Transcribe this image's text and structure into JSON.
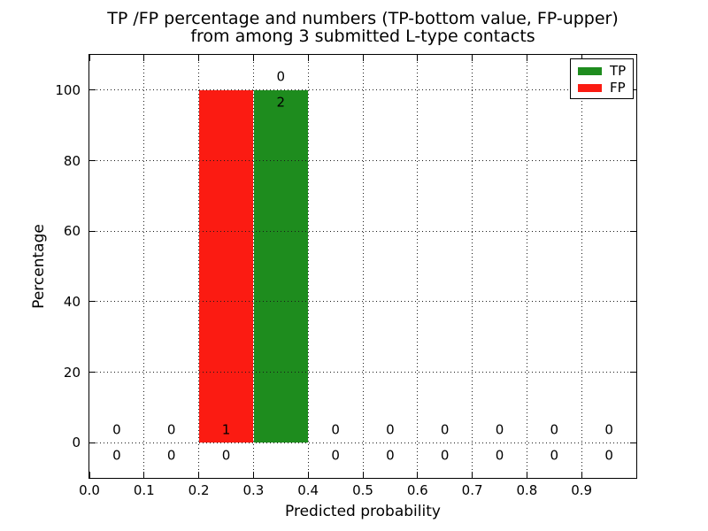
{
  "figure": {
    "title_line1": "TP /FP percentage and numbers (TP-bottom value, FP-upper)",
    "title_line2": "from among 3 submitted L-type contacts"
  },
  "chart_data": {
    "type": "bar",
    "title": "TP /FP percentage and numbers (TP-bottom value, FP-upper)\nfrom among 3 submitted L-type contacts",
    "xlabel": "Predicted probability",
    "ylabel": "Percentage",
    "xlim": [
      0.0,
      1.0
    ],
    "ylim": [
      -10,
      110
    ],
    "xtick_labels": [
      "0.0",
      "0.1",
      "0.2",
      "0.3",
      "0.4",
      "0.5",
      "0.6",
      "0.7",
      "0.8",
      "0.9"
    ],
    "ytick_values": [
      0,
      20,
      40,
      60,
      80,
      100
    ],
    "grid": "dotted both axes, drawn over bars",
    "legend_position": "upper right",
    "bin_width": 0.1,
    "bin_centers": [
      0.05,
      0.15,
      0.25,
      0.35,
      0.45,
      0.55,
      0.65,
      0.75,
      0.85,
      0.95
    ],
    "series": [
      {
        "name": "FP",
        "color": "#fb1b12",
        "percentages": [
          0,
          0,
          100,
          0,
          0,
          0,
          0,
          0,
          0,
          0
        ],
        "counts": [
          0,
          0,
          1,
          0,
          0,
          0,
          0,
          0,
          0,
          0
        ],
        "count_label_row": "upper"
      },
      {
        "name": "TP",
        "color": "#1e8c1e",
        "percentages": [
          0,
          0,
          0,
          100,
          0,
          0,
          0,
          0,
          0,
          0
        ],
        "counts": [
          0,
          0,
          0,
          2,
          0,
          0,
          0,
          0,
          0,
          0
        ],
        "count_label_row": "lower"
      }
    ],
    "legend": [
      {
        "label": "TP",
        "color": "#1e8c1e"
      },
      {
        "label": "FP",
        "color": "#fb1b12"
      }
    ]
  }
}
